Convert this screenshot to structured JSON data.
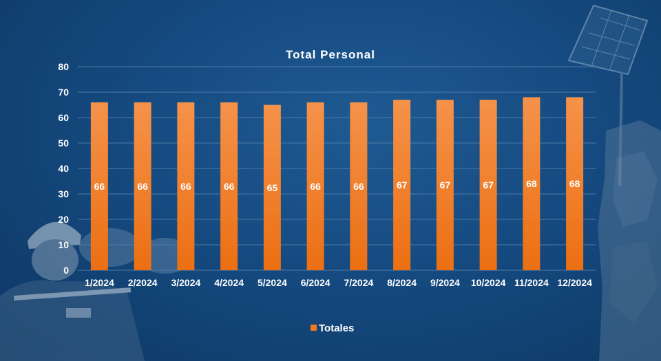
{
  "chart_data": {
    "type": "bar",
    "title": "Total Personal",
    "categories": [
      "1/2024",
      "2/2024",
      "3/2024",
      "4/2024",
      "5/2024",
      "6/2024",
      "7/2024",
      "8/2024",
      "9/2024",
      "10/2024",
      "11/2024",
      "12/2024"
    ],
    "series": [
      {
        "name": "Totales",
        "values": [
          66,
          66,
          66,
          66,
          65,
          66,
          66,
          67,
          67,
          67,
          68,
          68
        ],
        "color": "#f07820"
      }
    ],
    "ylim": [
      0,
      80
    ],
    "yticks": [
      0,
      10,
      20,
      30,
      40,
      50,
      60,
      70,
      80
    ],
    "grid": true,
    "legend_position": "bottom-center",
    "data_labels": true
  },
  "colors": {
    "background": "#154a80",
    "bar": "#f07820",
    "text": "#ffffff",
    "grid": "#4d7aa6"
  }
}
